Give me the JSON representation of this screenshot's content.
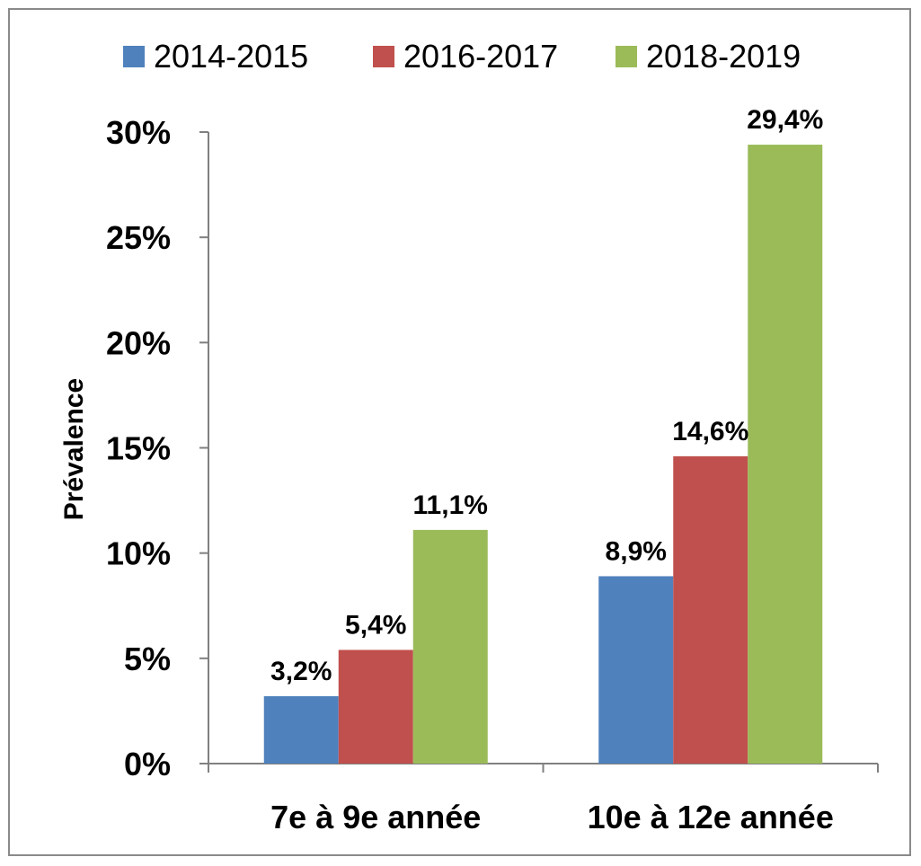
{
  "chart_data": {
    "type": "bar",
    "title": "",
    "xlabel": "",
    "ylabel": "Prévalence",
    "categories": [
      "7e à 9e année",
      "10e à 12e année"
    ],
    "series": [
      {
        "name": "2014-2015",
        "color": "#4F81BD",
        "values": [
          3.2,
          8.9
        ],
        "labels": [
          "3,2%",
          "8,9%"
        ]
      },
      {
        "name": "2016-2017",
        "color": "#C0504D",
        "values": [
          5.4,
          14.6
        ],
        "labels": [
          "5,4%",
          "14,6%"
        ]
      },
      {
        "name": "2018-2019",
        "color": "#9BBB59",
        "values": [
          11.1,
          29.4
        ],
        "labels": [
          "11,1%",
          "29,4%"
        ]
      }
    ],
    "ylim": [
      0,
      30
    ],
    "yticks": [
      0,
      5,
      10,
      15,
      20,
      25,
      30
    ],
    "ytick_labels": [
      "0%",
      "5%",
      "10%",
      "15%",
      "20%",
      "25%",
      "30%"
    ],
    "grid": false,
    "legend_position": "top"
  }
}
